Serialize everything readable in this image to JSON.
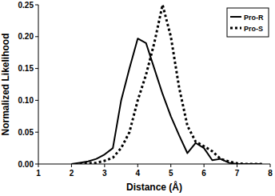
{
  "chart_data": {
    "type": "line",
    "x_label": "Distance (Å)",
    "y_label": "Normalized Likelihood",
    "x": [
      2,
      2.25,
      2.5,
      2.75,
      3,
      3.25,
      3.5,
      3.75,
      4,
      4.25,
      4.5,
      4.75,
      5,
      5.25,
      5.5,
      5.75,
      6,
      6.25,
      6.5,
      6.75,
      7,
      7.25,
      7.5,
      7.75
    ],
    "series": [
      {
        "name": "Pro-R",
        "color": "#000000",
        "line_style": "solid",
        "values": [
          0,
          0.002,
          0.004,
          0.008,
          0.015,
          0.025,
          0.1,
          0.15,
          0.197,
          0.19,
          0.15,
          0.11,
          0.075,
          0.045,
          0.017,
          0.033,
          0.025,
          0.006,
          0.008,
          0.002,
          0,
          0,
          0,
          0
        ]
      },
      {
        "name": "Pro-S",
        "color": "#000000",
        "line_style": "dotted",
        "values": [
          null,
          0,
          0.001,
          0.002,
          0.005,
          0.01,
          0.025,
          0.05,
          0.1,
          0.14,
          0.19,
          0.25,
          0.2,
          0.12,
          0.06,
          0.035,
          0.028,
          0.02,
          0.008,
          0.004,
          0.001,
          0,
          0,
          0
        ]
      }
    ],
    "xlim": [
      1,
      8
    ],
    "xticks": [
      1,
      2,
      3,
      4,
      5,
      6,
      7,
      8
    ],
    "ylim": [
      0,
      0.25
    ],
    "yticks": [
      {
        "value": 0,
        "label": "0.00"
      },
      {
        "value": 0.05,
        "label": "0.05"
      },
      {
        "value": 0.1,
        "label": "0.10"
      },
      {
        "value": 0.15,
        "label": "0.15"
      },
      {
        "value": 0.2,
        "label": "0.20"
      },
      {
        "value": 0.25,
        "label": "0.25"
      }
    ],
    "grid": false,
    "legend": "top-right"
  }
}
